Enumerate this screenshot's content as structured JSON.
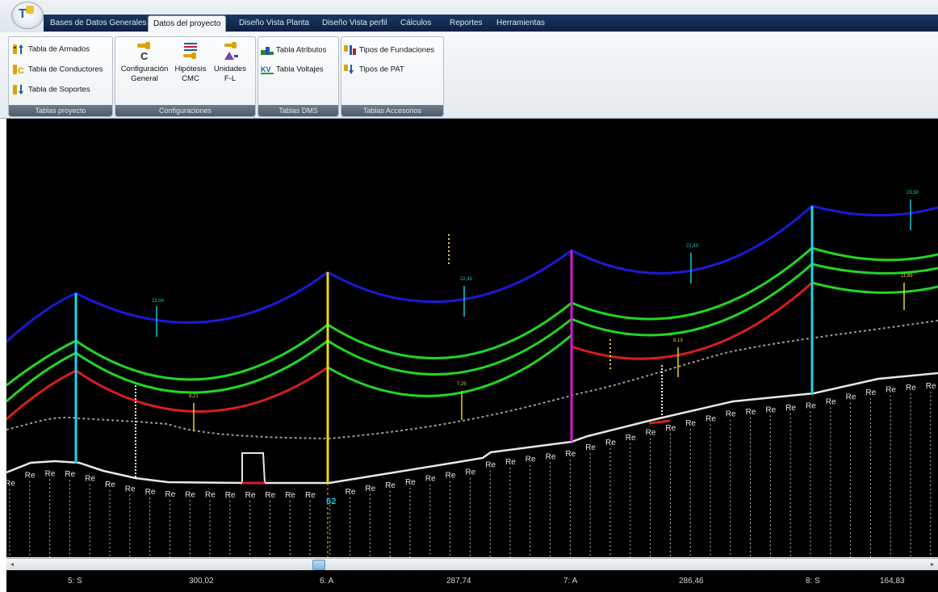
{
  "app": {
    "logo_text": "T"
  },
  "menu": {
    "tabs": [
      {
        "label": "Bases de Datos Generales"
      },
      {
        "label": "Datos del proyecto"
      },
      {
        "label": "Diseño Vista Planta"
      },
      {
        "label": "Diseño Vista perfil"
      },
      {
        "label": "Cálculos"
      },
      {
        "label": "Reportes"
      },
      {
        "label": "Herramientas"
      }
    ],
    "active_tab": "Datos del proyecto"
  },
  "ribbon": {
    "groups": [
      {
        "label": "Tablas proyecto",
        "buttons": [
          {
            "label": "Tabla de Armados",
            "icon": "armados-table-icon"
          },
          {
            "label": "Tabla de Conductores",
            "icon": "conductores-table-icon"
          },
          {
            "label": "Tabla de Soportes",
            "icon": "soportes-table-icon"
          }
        ]
      },
      {
        "label": "Configuraciones",
        "buttons": [
          {
            "label": "Configuración",
            "sublabel": "General",
            "icon": "config-general-icon"
          },
          {
            "label": "Hipótesis",
            "sublabel": "CMC",
            "icon": "hipotesis-icon"
          },
          {
            "label": "Unidades",
            "sublabel": "F-L",
            "icon": "unidades-icon"
          }
        ]
      },
      {
        "label": "Tablas DMS",
        "buttons": [
          {
            "label": "Tabla Atributos",
            "icon": "atributos-icon"
          },
          {
            "label": "Tabla Voltajes",
            "icon": "voltajes-icon",
            "icon_text": "KV"
          }
        ]
      },
      {
        "label": "Tablas Accesorios",
        "buttons": [
          {
            "label": "Tipos de Fundaciones",
            "icon": "fundaciones-icon"
          },
          {
            "label": "Tipos de PAT",
            "icon": "pat-icon"
          }
        ]
      }
    ]
  },
  "profile": {
    "terrain_label": "Re",
    "pole_label_62": "62",
    "annotations": [
      {
        "text": "22,04",
        "color": "#19c3d6"
      },
      {
        "text": "22,41",
        "color": "#19c3d6"
      },
      {
        "text": "21,43",
        "color": "#19c3d6"
      },
      {
        "text": "23,50",
        "color": "#19c3d6"
      },
      {
        "text": "8,21",
        "color": "#e6d21a"
      },
      {
        "text": "7,25",
        "color": "#e6d21a"
      },
      {
        "text": "8,13",
        "color": "#e6d21a"
      },
      {
        "text": "11,89",
        "color": "#e6d21a"
      }
    ],
    "colors": {
      "top_wire": "#1a1ad6",
      "green_wire": "#22d622",
      "red_wire": "#d61e1e",
      "terrain": "#e8e8e8",
      "pole_cyan": "#19d6e6",
      "pole_yellow": "#e6d619",
      "pole_magenta": "#d619d6"
    }
  },
  "footer": {
    "items": [
      "5: S",
      "300,02",
      "6: A",
      "287,74",
      "7: A",
      "286,46",
      "8: S",
      "164,83"
    ]
  },
  "scrollbar": {
    "left_arrow": "◂",
    "right_arrow": "▸"
  }
}
